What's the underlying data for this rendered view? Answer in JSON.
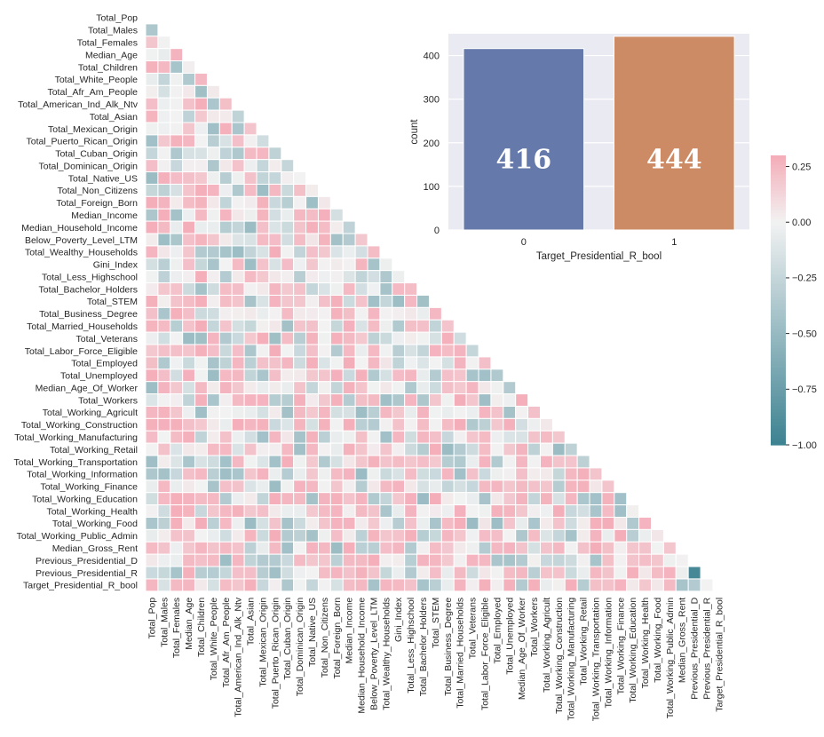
{
  "chart_data": [
    {
      "type": "heatmap",
      "variables": [
        "Total_Pop",
        "Total_Males",
        "Total_Females",
        "Median_Age",
        "Total_Children",
        "Total_White_People",
        "Total_Afr_Am_People",
        "Total_American_Ind_Alk_Ntv",
        "Total_Asian",
        "Total_Mexican_Origin",
        "Total_Puerto_Rican_Origin",
        "Total_Cuban_Origin",
        "Total_Dominican_Origin",
        "Total_Native_US",
        "Total_Non_Citizens",
        "Total_Foreign_Born",
        "Median_Income",
        "Median_Household_Income",
        "Below_Poverty_Level_LTM",
        "Total_Wealthy_Households",
        "Gini_Index",
        "Total_Less_Highschool",
        "Total_Bachelor_Holders",
        "Total_STEM",
        "Total_Business_Degree",
        "Total_Married_Households",
        "Total_Veterans",
        "Total_Labor_Force_Eligible",
        "Total_Employed",
        "Total_Unemployed",
        "Median_Age_Of_Worker",
        "Total_Workers",
        "Total_Working_Agricult",
        "Total_Working_Construction",
        "Total_Working_Manufacturing",
        "Total_Working_Retail",
        "Total_Working_Transportation",
        "Total_Working_Information",
        "Total_Working_Finance",
        "Total_Working_Education",
        "Total_Working_Health",
        "Total_Working_Food",
        "Total_Working_Public_Admin",
        "Median_Gross_Rent",
        "Previous_Presidential_D",
        "Previous_Presidential_R",
        "Target_Presidential_R_bool"
      ],
      "mask": "upper-triangle",
      "colormap": "diverging teal-white-pink",
      "vmin": -1.0,
      "vmax": 0.3,
      "colorbar_ticks": [
        "0.25",
        "0.00",
        "−0.25",
        "−0.50",
        "−0.75",
        "−1.00"
      ],
      "colorbar_tick_values": [
        0.25,
        0.0,
        -0.25,
        -0.5,
        -0.75,
        -1.0
      ],
      "highlighted_cells": [
        {
          "row": "Previous_Presidential_R",
          "col": "Previous_Presidential_D",
          "value": -0.95
        }
      ]
    },
    {
      "type": "bar",
      "categories": [
        "0",
        "1"
      ],
      "values": [
        416,
        444
      ],
      "data_labels": [
        "416",
        "444"
      ],
      "bar_colors": [
        "#6579ab",
        "#cd8b65"
      ],
      "background": "#eaeaf2",
      "xlabel": "Target_Presidential_R_bool",
      "ylabel": "count",
      "ylim": [
        0,
        450
      ],
      "yticks": [
        "0",
        "100",
        "200",
        "300",
        "400"
      ],
      "ytick_values": [
        0,
        100,
        200,
        300,
        400
      ],
      "grid": true
    }
  ]
}
